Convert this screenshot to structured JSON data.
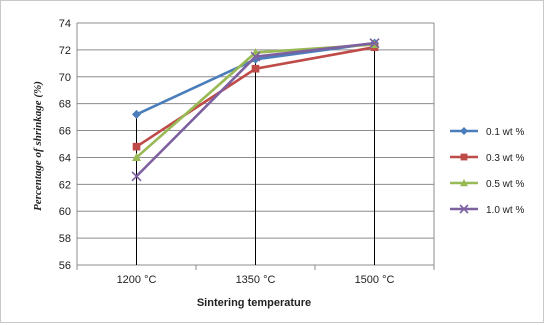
{
  "chart_data": {
    "type": "line",
    "categories": [
      "1200 °C",
      "1350 °C",
      "1500  °C"
    ],
    "xlabel": "Sintering temperature",
    "ylabel": "Percentage   of shrinkage   (%)",
    "ylim": [
      56,
      74
    ],
    "yticks": [
      56,
      58,
      60,
      62,
      64,
      66,
      68,
      70,
      72,
      74
    ],
    "grid": true,
    "legend_position": "right",
    "series": [
      {
        "name": "0.1 wt %",
        "color": "#4a7ebb",
        "marker": "diamond",
        "values": [
          67.2,
          71.3,
          72.5
        ]
      },
      {
        "name": "0.3 wt %",
        "color": "#be4b48",
        "marker": "square",
        "values": [
          64.8,
          70.6,
          72.2
        ]
      },
      {
        "name": "0.5 wt %",
        "color": "#98b954",
        "marker": "triangle",
        "values": [
          64.0,
          71.8,
          72.4
        ]
      },
      {
        "name": "1.0 wt %",
        "color": "#7d60a0",
        "marker": "x",
        "values": [
          62.6,
          71.5,
          72.5
        ]
      }
    ]
  }
}
